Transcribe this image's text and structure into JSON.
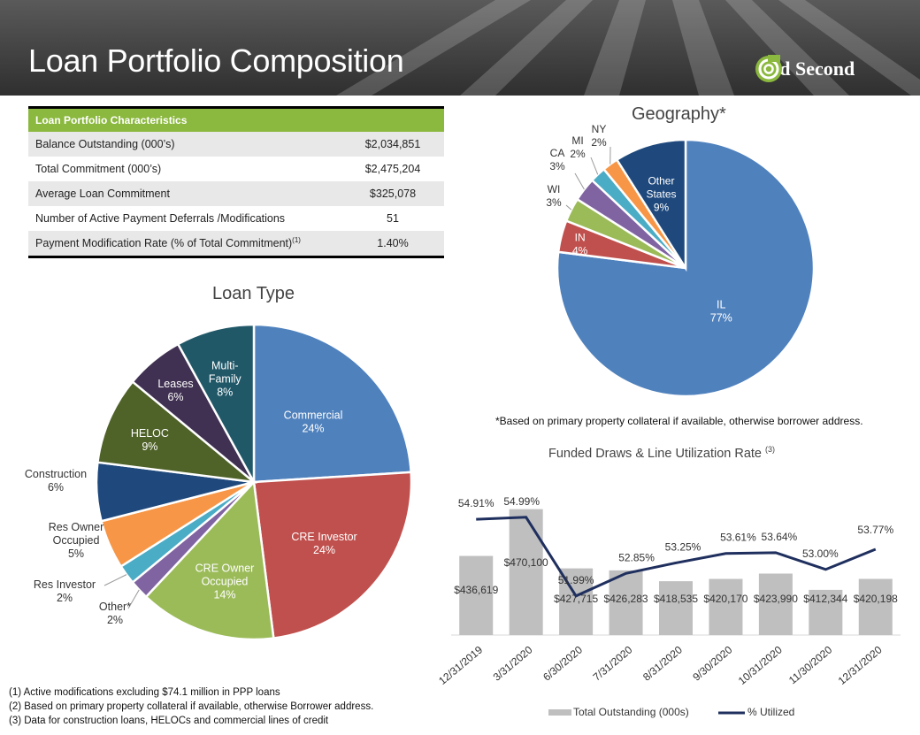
{
  "header": {
    "title": "Loan Portfolio Composition",
    "logo_text": "Old Second"
  },
  "characteristics": {
    "heading": "Loan Portfolio Characteristics",
    "rows": [
      {
        "label": "Balance Outstanding (000’s)",
        "value": "$2,034,851"
      },
      {
        "label": "Total Commitment (000’s)",
        "value": "$2,475,204"
      },
      {
        "label": "Average Loan Commitment",
        "value": "$325,078"
      },
      {
        "label": "Number of Active Payment Deferrals /Modifications",
        "value": "51"
      },
      {
        "label": "Payment Modification Rate (% of Total Commitment)",
        "sup": "(1)",
        "value": "1.40%"
      }
    ]
  },
  "geography_note": "*Based on primary property collateral if available, otherwise borrower address.",
  "footnotes": [
    "(1)  Active modifications excluding $74.1 million in PPP loans",
    "(2)  Based on primary property collateral if available, otherwise Borrower address.",
    "(3)  Data for construction loans, HELOCs and commercial lines of credit"
  ],
  "chart_data": [
    {
      "type": "pie",
      "title": "Loan Type",
      "slices": [
        {
          "label": "Commercial",
          "value": 24,
          "display": "24%",
          "color": "#4f81bd"
        },
        {
          "label": "CRE Investor",
          "value": 24,
          "display": "24%",
          "color": "#c0504d"
        },
        {
          "label": "CRE Owner Occupied",
          "value": 14,
          "display": "14%",
          "color": "#9bbb59"
        },
        {
          "label": "Other*",
          "value": 2,
          "display": "2%",
          "color": "#8064a2"
        },
        {
          "label": "Res Investor",
          "value": 2,
          "display": "2%",
          "color": "#4bacc6"
        },
        {
          "label": "Res Owner Occupied",
          "value": 5,
          "display": "5%",
          "color": "#f79646"
        },
        {
          "label": "Construction",
          "value": 6,
          "display": "6%",
          "color": "#1f497d"
        },
        {
          "label": "HELOC",
          "value": 9,
          "display": "9%",
          "color": "#4f6228"
        },
        {
          "label": "Leases",
          "value": 6,
          "display": "6%",
          "color": "#403152"
        },
        {
          "label": "Multi-Family",
          "value": 8,
          "display": "8%",
          "color": "#215868"
        }
      ]
    },
    {
      "type": "pie",
      "title": "Geography*",
      "slices": [
        {
          "label": "IL",
          "value": 77,
          "display": "77%",
          "color": "#4f81bd"
        },
        {
          "label": "IN",
          "value": 4,
          "display": "4%",
          "color": "#c0504d"
        },
        {
          "label": "WI",
          "value": 3,
          "display": "3%",
          "color": "#9bbb59"
        },
        {
          "label": "CA",
          "value": 3,
          "display": "3%",
          "color": "#8064a2"
        },
        {
          "label": "MI",
          "value": 2,
          "display": "2%",
          "color": "#4bacc6"
        },
        {
          "label": "NY",
          "value": 2,
          "display": "2%",
          "color": "#f79646"
        },
        {
          "label": "Other States",
          "value": 9,
          "display": "9%",
          "color": "#1f497d"
        }
      ]
    },
    {
      "type": "bar",
      "title": "Funded Draws & Line Utilization Rate",
      "title_sup": "(3)",
      "categories": [
        "12/31/2019",
        "3/31/2020",
        "6/30/2020",
        "7/31/2020",
        "8/31/2020",
        "9/30/2020",
        "10/31/2020",
        "11/30/2020",
        "12/31/2020"
      ],
      "series": [
        {
          "name": "Total Outstanding (000s)",
          "type": "bar",
          "color": "#bfbfbf",
          "values": [
            436619,
            470100,
            427715,
            426283,
            418535,
            420170,
            423990,
            412344,
            420198
          ],
          "labels": [
            "$436,619",
            "$470,100",
            "$427,715",
            "$426,283",
            "$418,535",
            "$420,170",
            "$423,990",
            "$412,344",
            "$420,198"
          ]
        },
        {
          "name": "% Utilized",
          "type": "line",
          "color": "#1f2f5e",
          "values": [
            54.91,
            54.99,
            51.99,
            52.85,
            53.25,
            53.61,
            53.64,
            53.0,
            53.77
          ],
          "labels": [
            "54.91%",
            "54.99%",
            "51.99%",
            "52.85%",
            "53.25%",
            "53.61%",
            "53.64%",
            "53.00%",
            "53.77%"
          ]
        }
      ],
      "bar_ylim": [
        380000,
        480000
      ],
      "line_ylim": [
        50.5,
        56.5
      ],
      "legend": "bottom"
    }
  ]
}
